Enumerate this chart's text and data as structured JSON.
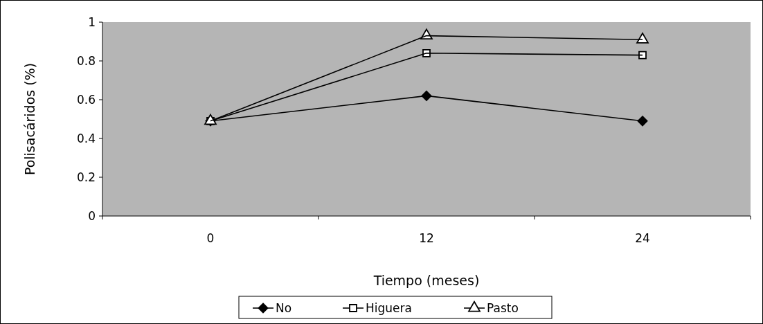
{
  "chart_data": {
    "type": "line",
    "xlabel": "Tiempo (meses)",
    "ylabel": "Polisacáridos (%)",
    "categories": [
      "0",
      "12",
      "24"
    ],
    "series": [
      {
        "name": "No",
        "color": "#000000",
        "marker": "diamond",
        "values": [
          0.49,
          0.62,
          0.49
        ]
      },
      {
        "name": "Higuera",
        "color": "#000000",
        "marker": "square",
        "values": [
          0.49,
          0.84,
          0.83
        ]
      },
      {
        "name": "Pasto",
        "color": "#000000",
        "marker": "triangle",
        "values": [
          0.49,
          0.93,
          0.91
        ]
      }
    ],
    "ylim": [
      0,
      1
    ],
    "yticks": [
      0,
      0.2,
      0.4,
      0.6,
      0.8,
      1
    ],
    "grid": false,
    "legend": "bottom",
    "line_style": "solid"
  }
}
